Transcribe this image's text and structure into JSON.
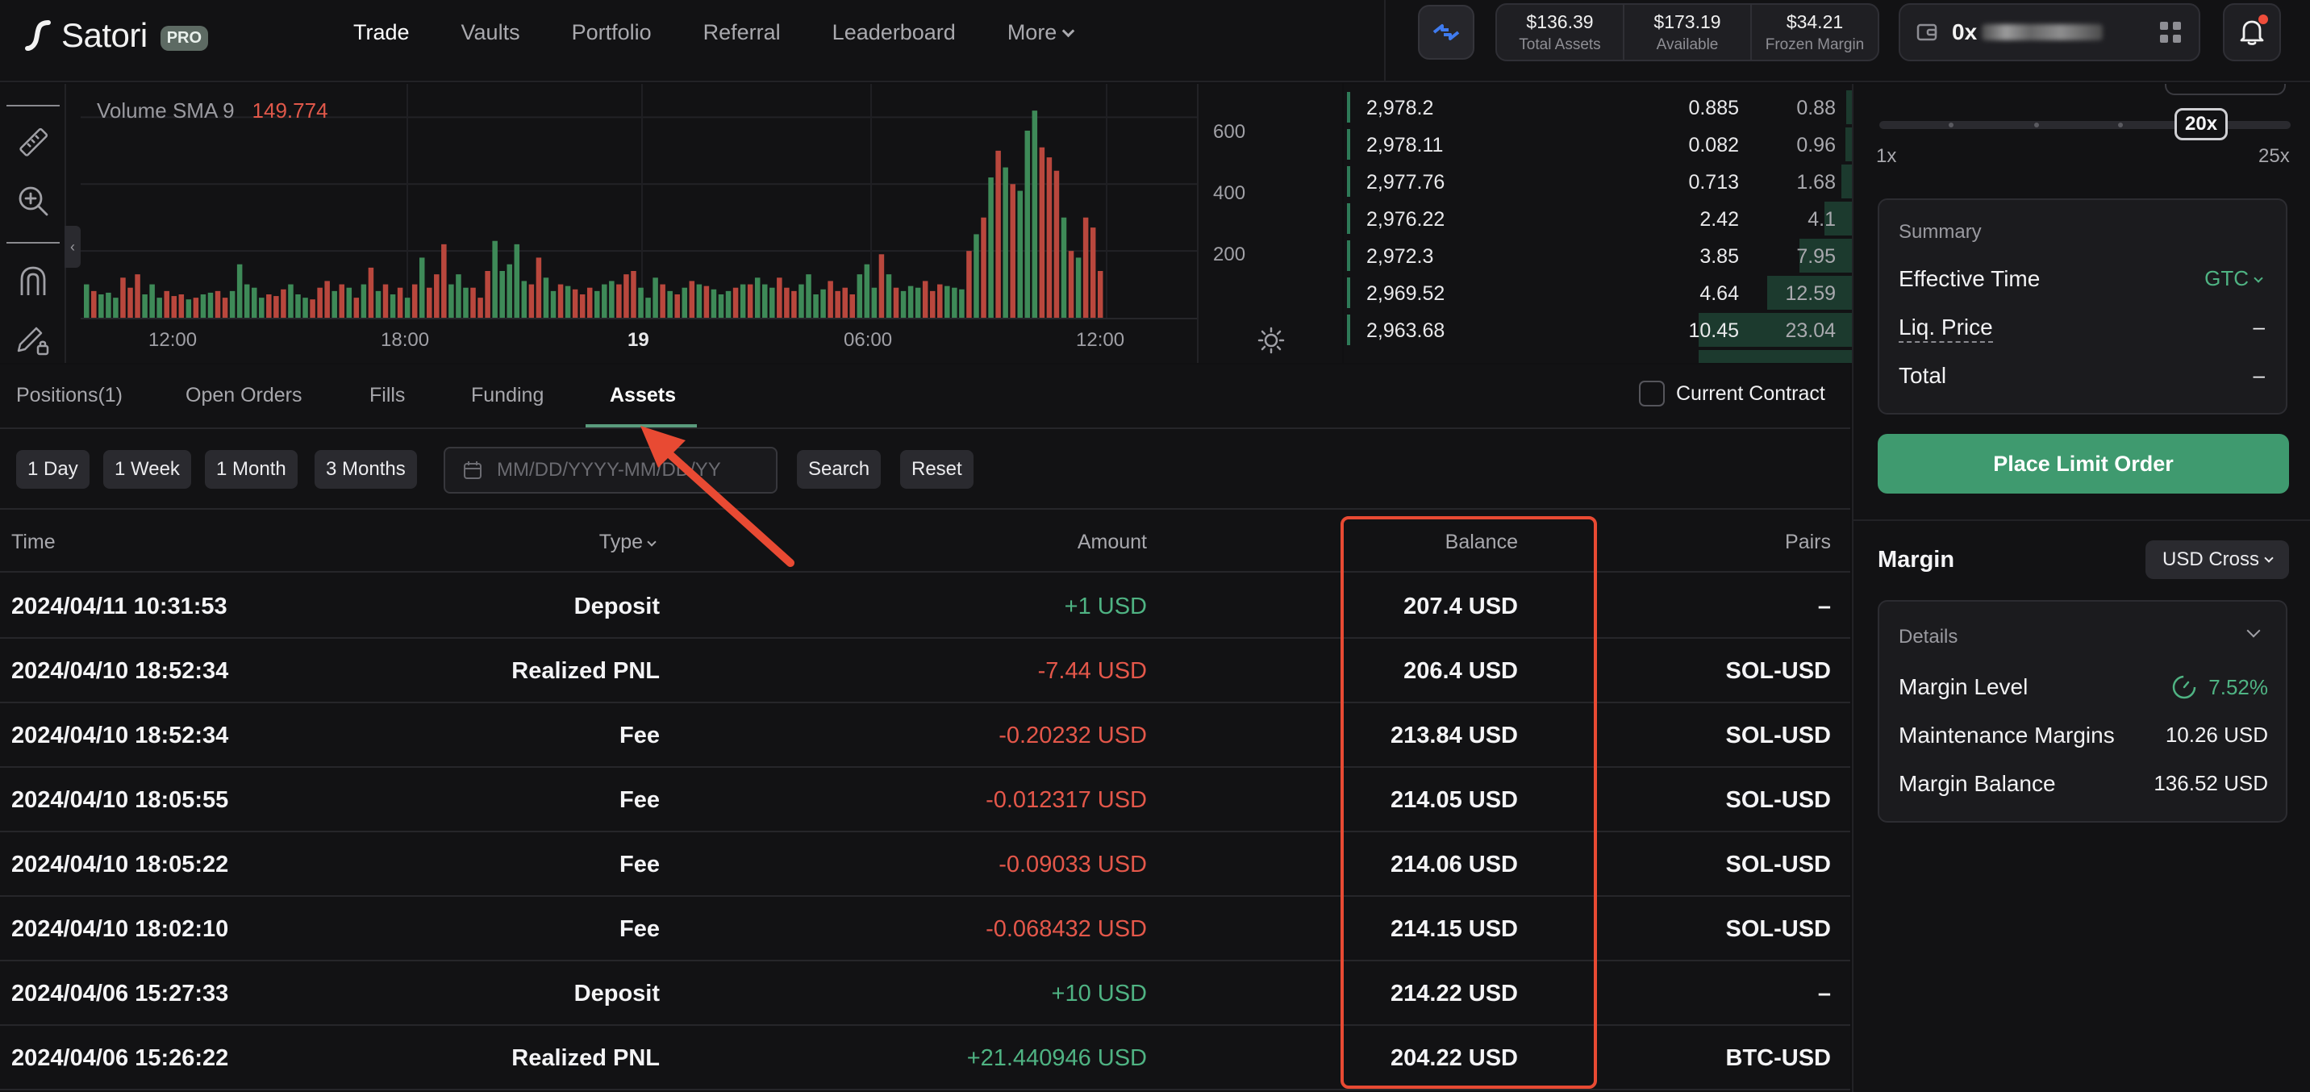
{
  "header": {
    "brand": "Satori",
    "badge": "PRO",
    "nav": [
      {
        "label": "Trade",
        "active": true
      },
      {
        "label": "Vaults"
      },
      {
        "label": "Portfolio"
      },
      {
        "label": "Referral"
      },
      {
        "label": "Leaderboard"
      },
      {
        "label": "More"
      }
    ],
    "balances": [
      {
        "value": "$136.39",
        "label": "Total Assets"
      },
      {
        "value": "$173.19",
        "label": "Available"
      },
      {
        "value": "$34.21",
        "label": "Frozen Margin"
      }
    ],
    "wallet_prefix": "0x",
    "icons": {
      "swap": "swap-arrows-icon",
      "wallet": "wallet-icon",
      "apps": "grid-icon",
      "bell": "bell-icon"
    }
  },
  "chart": {
    "legend_label": "Volume SMA 9",
    "legend_value": "149.774",
    "y_ticks": [
      "600",
      "400",
      "200"
    ],
    "x_ticks": [
      "12:00",
      "18:00",
      "19",
      "06:00",
      "12:00"
    ],
    "tools": [
      "ruler-icon",
      "zoom-in-icon",
      "magnet-icon",
      "pencil-lock-icon"
    ],
    "collapse_glyph": "‹"
  },
  "chart_data": {
    "type": "bar",
    "title": "",
    "xlabel": "",
    "ylabel": "",
    "ylim": [
      0,
      700
    ],
    "series": [
      {
        "name": "Volume",
        "values": [
          100,
          80,
          70,
          75,
          60,
          120,
          90,
          130,
          70,
          100,
          60,
          80,
          65,
          70,
          55,
          60,
          70,
          75,
          80,
          60,
          80,
          160,
          100,
          90,
          60,
          70,
          65,
          85,
          100,
          70,
          60,
          55,
          90,
          110,
          80,
          100,
          90,
          60,
          100,
          150,
          80,
          100,
          70,
          90,
          60,
          100,
          180,
          90,
          130,
          220,
          100,
          130,
          90,
          90,
          60,
          140,
          230,
          140,
          160,
          220,
          110,
          100,
          180,
          120,
          80,
          100,
          95,
          85,
          70,
          90,
          80,
          100,
          110,
          100,
          130,
          140,
          90,
          60,
          120,
          100,
          80,
          70,
          90,
          110,
          100,
          95,
          85,
          70,
          80,
          90,
          100,
          100,
          120,
          100,
          90,
          120,
          90,
          80,
          100,
          130,
          70,
          85,
          110,
          80,
          90,
          70,
          130,
          160,
          90,
          190,
          130,
          90,
          80,
          95,
          90,
          110,
          80,
          100,
          95,
          90,
          85,
          200,
          250,
          300,
          420,
          500,
          450,
          400,
          380,
          560,
          620,
          510,
          480,
          440,
          300,
          200,
          180,
          300,
          270,
          140
        ]
      },
      {
        "name": "Volume SMA 9",
        "values": [
          149.774
        ]
      }
    ]
  },
  "orderbook": [
    {
      "price": "2,978.2",
      "size": "0.885",
      "total": "0.88",
      "depth": 0.035
    },
    {
      "price": "2,978.11",
      "size": "0.082",
      "total": "0.96",
      "depth": 0.04
    },
    {
      "price": "2,977.76",
      "size": "0.713",
      "total": "1.68",
      "depth": 0.07
    },
    {
      "price": "2,976.22",
      "size": "2.42",
      "total": "4.1",
      "depth": 0.18
    },
    {
      "price": "2,972.3",
      "size": "3.85",
      "total": "7.95",
      "depth": 0.34
    },
    {
      "price": "2,969.52",
      "size": "4.64",
      "total": "12.59",
      "depth": 0.55
    },
    {
      "price": "2,963.68",
      "size": "10.45",
      "total": "23.04",
      "depth": 1.0
    }
  ],
  "tabs": [
    {
      "label": "Positions(1)"
    },
    {
      "label": "Open Orders"
    },
    {
      "label": "Fills"
    },
    {
      "label": "Funding"
    },
    {
      "label": "Assets",
      "active": true
    }
  ],
  "current_contract_label": "Current Contract",
  "filters": {
    "ranges": [
      "1 Day",
      "1 Week",
      "1 Month",
      "3 Months"
    ],
    "date_placeholder": "MM/DD/YYYY-MM/DD/YY",
    "search": "Search",
    "reset": "Reset"
  },
  "table": {
    "columns": [
      "Time",
      "Type",
      "Amount",
      "Balance",
      "Pairs"
    ],
    "rows": [
      {
        "time": "2024/04/11 10:31:53",
        "type": "Deposit",
        "amount": "+1 USD",
        "balance": "207.4 USD",
        "pairs": "–"
      },
      {
        "time": "2024/04/10 18:52:34",
        "type": "Realized PNL",
        "amount": "-7.44 USD",
        "balance": "206.4 USD",
        "pairs": "SOL-USD"
      },
      {
        "time": "2024/04/10 18:52:34",
        "type": "Fee",
        "amount": "-0.20232 USD",
        "balance": "213.84 USD",
        "pairs": "SOL-USD"
      },
      {
        "time": "2024/04/10 18:05:55",
        "type": "Fee",
        "amount": "-0.012317 USD",
        "balance": "214.05 USD",
        "pairs": "SOL-USD"
      },
      {
        "time": "2024/04/10 18:05:22",
        "type": "Fee",
        "amount": "-0.09033 USD",
        "balance": "214.06 USD",
        "pairs": "SOL-USD"
      },
      {
        "time": "2024/04/10 18:02:10",
        "type": "Fee",
        "amount": "-0.068432 USD",
        "balance": "214.15 USD",
        "pairs": "SOL-USD"
      },
      {
        "time": "2024/04/06 15:27:33",
        "type": "Deposit",
        "amount": "+10 USD",
        "balance": "214.22 USD",
        "pairs": "–"
      },
      {
        "time": "2024/04/06 15:26:22",
        "type": "Realized PNL",
        "amount": "+21.440946 USD",
        "balance": "204.22 USD",
        "pairs": "BTC-USD"
      }
    ]
  },
  "leverage": {
    "current": "20x",
    "min": "1x",
    "max": "25x"
  },
  "summary": {
    "title": "Summary",
    "effective_time_label": "Effective Time",
    "effective_time_value": "GTC",
    "liq_price_label": "Liq. Price",
    "liq_price_value": "–",
    "total_label": "Total",
    "total_value": "–"
  },
  "place_order_label": "Place Limit Order",
  "margin": {
    "title": "Margin",
    "mode": "USD Cross",
    "details_title": "Details",
    "level_label": "Margin Level",
    "level_value": "7.52%",
    "maintenance_label": "Maintenance Margins",
    "maintenance_value": "10.26 USD",
    "balance_label": "Margin Balance",
    "balance_value": "136.52 USD"
  },
  "colors": {
    "up": "#3e8a58",
    "down": "#b9473d",
    "accent": "#3f9a6f",
    "highlight": "#e84a33"
  }
}
